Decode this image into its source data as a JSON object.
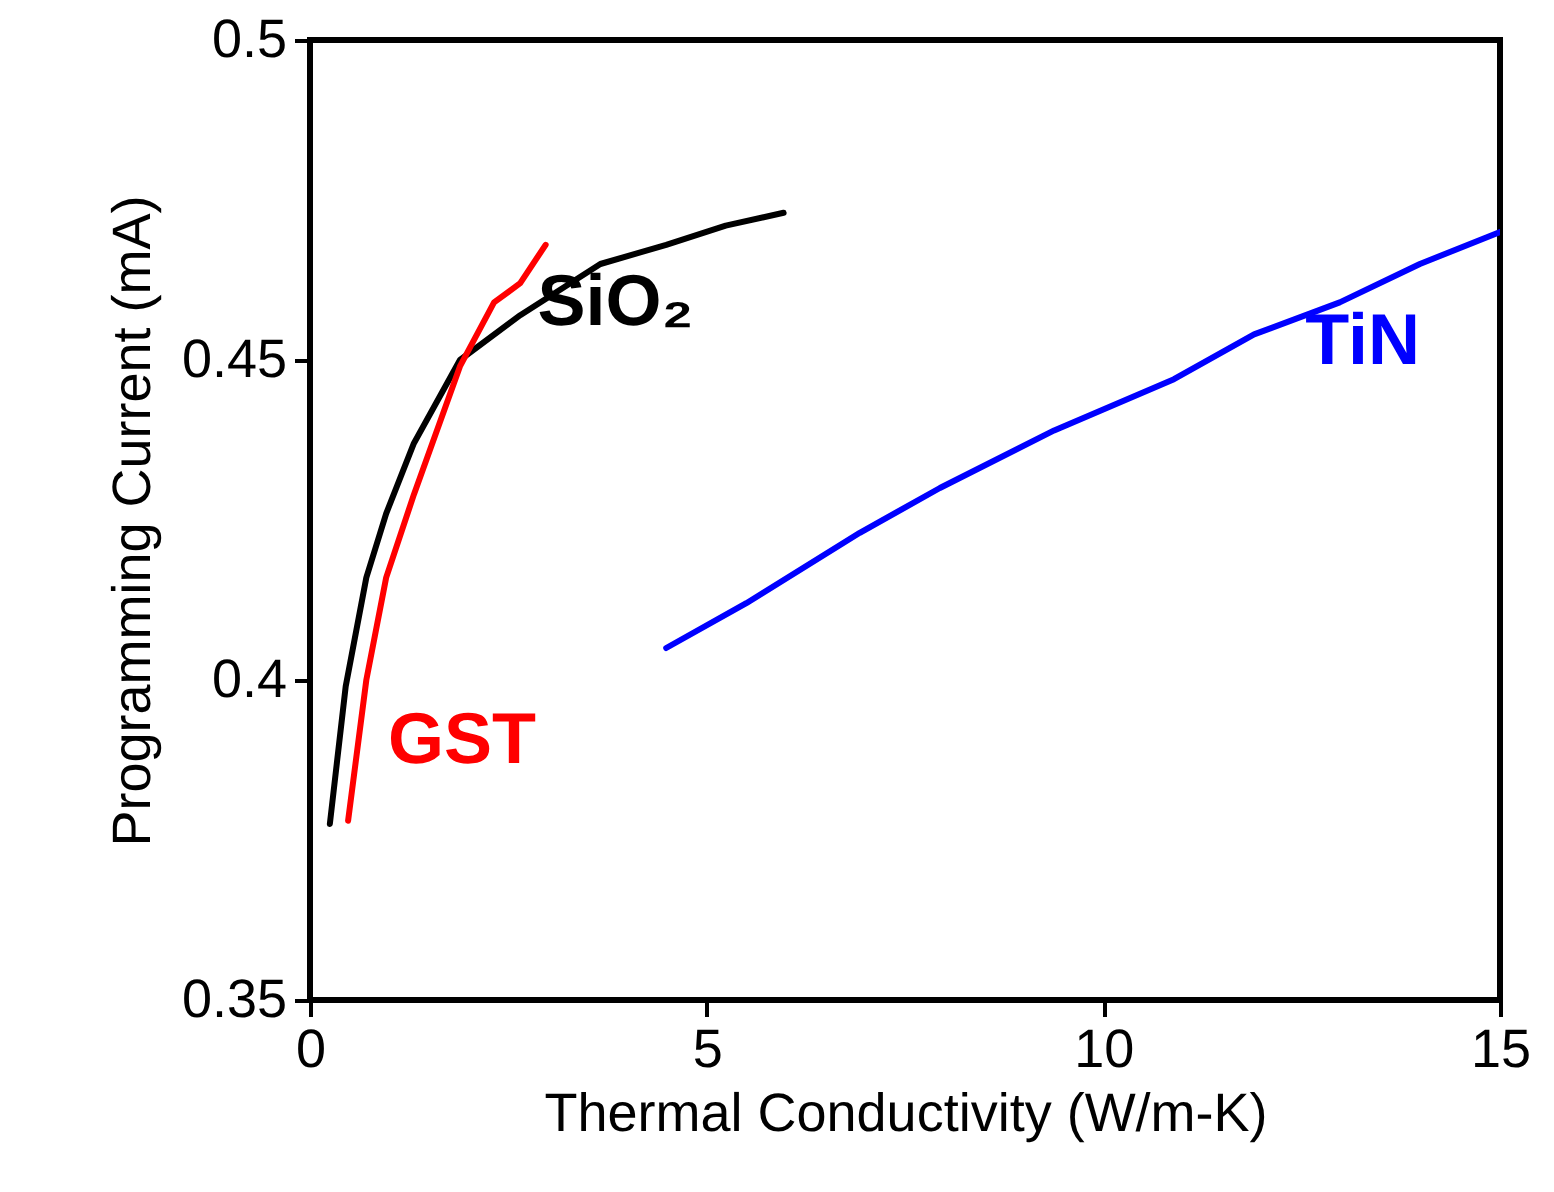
{
  "chart_data": {
    "type": "line",
    "xlabel": "Thermal Conductivity (W/m-K)",
    "ylabel": "Programming Current (mA)",
    "xlim": [
      0,
      15
    ],
    "ylim": [
      0.35,
      0.5
    ],
    "xticks": [
      0,
      5,
      10,
      15
    ],
    "yticks": [
      0.35,
      0.4,
      0.45,
      0.5
    ],
    "marker": "none",
    "line_style": "solid",
    "series": [
      {
        "name": "SiO₂",
        "color": "#000000",
        "x": [
          0.25,
          0.45,
          0.71,
          0.96,
          1.31,
          1.89,
          2.65,
          3.66,
          4.49,
          5.24,
          5.97
        ],
        "values": [
          0.3775,
          0.399,
          0.416,
          0.426,
          0.437,
          0.45,
          0.457,
          0.465,
          0.468,
          0.471,
          0.473
        ]
      },
      {
        "name": "GST",
        "color": "#ff0000",
        "x": [
          0.48,
          0.71,
          0.96,
          1.31,
          1.89,
          2.32,
          2.65,
          2.97
        ],
        "values": [
          0.378,
          0.4,
          0.416,
          0.429,
          0.449,
          0.459,
          0.462,
          0.468
        ]
      },
      {
        "name": "TiN",
        "color": "#0000ff",
        "x": [
          4.49,
          5.5,
          6.93,
          7.94,
          9.38,
          10.89,
          11.9,
          12.98,
          13.99,
          15.0
        ],
        "values": [
          0.405,
          0.412,
          0.423,
          0.43,
          0.439,
          0.447,
          0.454,
          0.459,
          0.465,
          0.47
        ]
      }
    ]
  }
}
